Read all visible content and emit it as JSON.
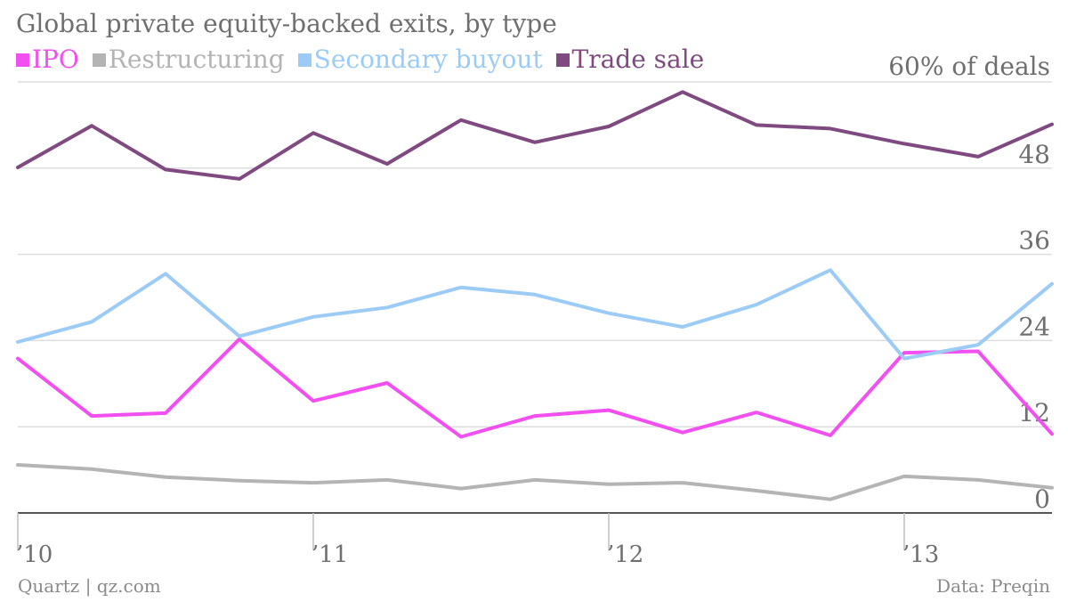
{
  "title": "Global private equity-backed exits, by type",
  "unit_label": "60% of deals",
  "footer": {
    "left": "Quartz | qz.com",
    "right": "Data: Preqin"
  },
  "legend": [
    {
      "label": "IPO",
      "color": "#f24ff0"
    },
    {
      "label": "Restructuring",
      "color": "#b4b4b4"
    },
    {
      "label": "Secondary buyout",
      "color": "#9ccbf6"
    },
    {
      "label": "Trade sale",
      "color": "#7e4a7f"
    }
  ],
  "chart_data": {
    "type": "line",
    "x": [
      "2010 Q1",
      "2010 Q2",
      "2010 Q3",
      "2010 Q4",
      "2011 Q1",
      "2011 Q2",
      "2011 Q3",
      "2011 Q4",
      "2012 Q1",
      "2012 Q2",
      "2012 Q3",
      "2012 Q4",
      "2013 Q1",
      "2013 Q2",
      "2013 Q3"
    ],
    "x_tick_labels": [
      {
        "label": "’10",
        "at": "2010 Q1"
      },
      {
        "label": "’11",
        "at": "2011 Q1"
      },
      {
        "label": "’12",
        "at": "2012 Q1"
      },
      {
        "label": "’13",
        "at": "2013 Q1"
      }
    ],
    "y_ticks": [
      {
        "value": 0,
        "label": "0"
      },
      {
        "value": 12,
        "label": "12"
      },
      {
        "value": 24,
        "label": "24"
      },
      {
        "value": 36,
        "label": "36"
      },
      {
        "value": 48,
        "label": "48"
      },
      {
        "value": 60,
        "label": "60% of deals"
      }
    ],
    "ylim": [
      0,
      60
    ],
    "grid": true,
    "series": [
      {
        "name": "IPO",
        "color": "#f24ff0",
        "values": [
          21.5,
          13.5,
          13.9,
          24.2,
          15.6,
          18.1,
          10.6,
          13.5,
          14.3,
          11.2,
          14.0,
          10.8,
          22.3,
          22.5,
          11.0
        ]
      },
      {
        "name": "Restructuring",
        "color": "#b4b4b4",
        "values": [
          6.7,
          6.1,
          5.0,
          4.5,
          4.2,
          4.6,
          3.4,
          4.6,
          4.0,
          4.2,
          3.1,
          1.9,
          5.1,
          4.6,
          3.5
        ]
      },
      {
        "name": "Secondary buyout",
        "color": "#9ccbf6",
        "values": [
          23.8,
          26.6,
          33.3,
          24.6,
          27.3,
          28.6,
          31.4,
          30.4,
          27.8,
          25.9,
          29.0,
          33.8,
          21.5,
          23.4,
          31.9
        ]
      },
      {
        "name": "Trade sale",
        "color": "#7e4a7f",
        "values": [
          48.1,
          53.9,
          47.8,
          46.5,
          52.9,
          48.6,
          54.7,
          51.6,
          53.8,
          58.6,
          54.0,
          53.5,
          51.4,
          49.6,
          54.1
        ]
      }
    ]
  }
}
